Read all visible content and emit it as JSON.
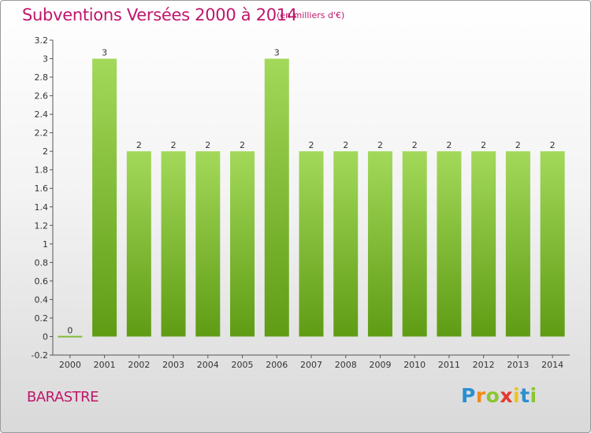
{
  "title": "Subventions Versées 2000 à 2014",
  "subtitle": "(en milliers d'€)",
  "place": "BARASTRE",
  "logo": {
    "letters": [
      "P",
      "r",
      "o",
      "x",
      "i",
      "t",
      "i"
    ]
  },
  "colors": {
    "accent": "#c0166b",
    "bar_top": "#a3d95a",
    "bar_bottom": "#5f9c14"
  },
  "chart_data": {
    "type": "bar",
    "title": "Subventions Versées 2000 à 2014",
    "subtitle": "(en milliers d'€)",
    "xlabel": "",
    "ylabel": "",
    "categories": [
      "2000",
      "2001",
      "2002",
      "2003",
      "2004",
      "2005",
      "2006",
      "2007",
      "2008",
      "2009",
      "2010",
      "2011",
      "2012",
      "2013",
      "2014"
    ],
    "values": [
      0,
      3,
      2,
      2,
      2,
      2,
      3,
      2,
      2,
      2,
      2,
      2,
      2,
      2,
      2
    ],
    "value_labels": [
      "0",
      "3",
      "2",
      "2",
      "2",
      "2",
      "3",
      "2",
      "2",
      "2",
      "2",
      "2",
      "2",
      "2",
      "2"
    ],
    "ylim": [
      -0.2,
      3.2
    ],
    "yticks": [
      {
        "v": 3.2,
        "label": "3.2"
      },
      {
        "v": 3.0,
        "label": "3"
      },
      {
        "v": 2.8,
        "label": "2.8"
      },
      {
        "v": 2.6,
        "label": "2.6"
      },
      {
        "v": 2.4,
        "label": "2.4"
      },
      {
        "v": 2.2,
        "label": "2.2"
      },
      {
        "v": 2.0,
        "label": "2"
      },
      {
        "v": 1.8,
        "label": "1.8"
      },
      {
        "v": 1.6,
        "label": "1.6"
      },
      {
        "v": 1.4,
        "label": "1.4"
      },
      {
        "v": 1.2,
        "label": "1.2"
      },
      {
        "v": 1.0,
        "label": "1"
      },
      {
        "v": 0.8,
        "label": "0.8"
      },
      {
        "v": 0.6,
        "label": "0.6"
      },
      {
        "v": 0.4,
        "label": "0.4"
      },
      {
        "v": 0.2,
        "label": "0.2"
      },
      {
        "v": 0.0,
        "label": "0"
      },
      {
        "v": -0.2,
        "label": "-0.2"
      }
    ],
    "grid": false,
    "legend": "none"
  }
}
